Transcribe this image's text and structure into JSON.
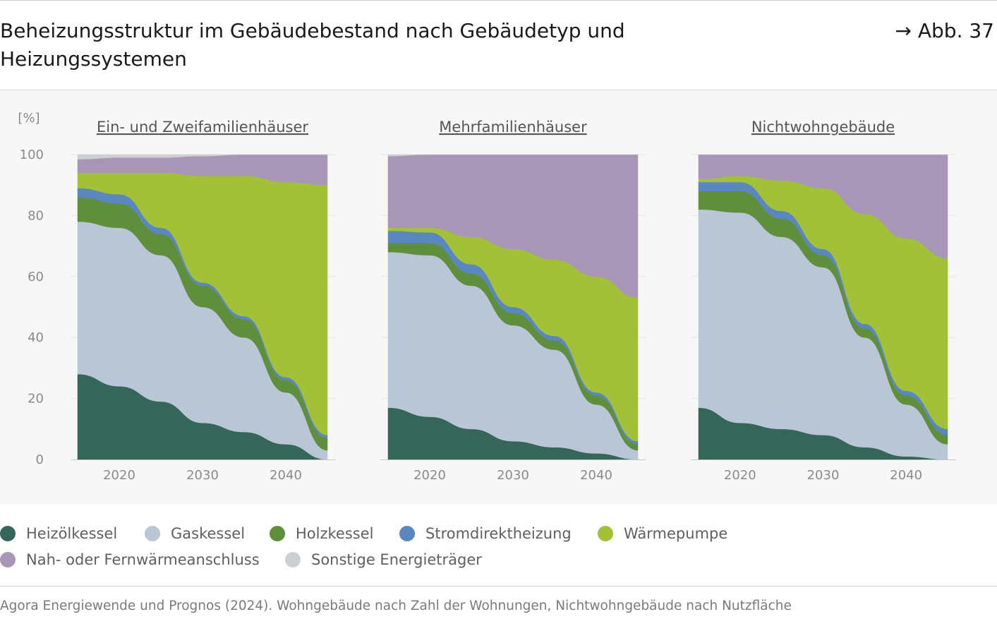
{
  "header": {
    "title": "Beheizungsstruktur im Gebäudebestand nach Gebäudetyp und Heizungssystemen",
    "figure_ref": "→ Abb. 37"
  },
  "chart_data": {
    "type": "area",
    "stacked": true,
    "unit_label": "[%]",
    "ylim": [
      0,
      100
    ],
    "yticks": [
      0,
      20,
      40,
      60,
      80,
      100
    ],
    "xlim": [
      2015,
      2045
    ],
    "xticks": [
      2020,
      2030,
      2040
    ],
    "x": [
      2015,
      2020,
      2025,
      2030,
      2035,
      2040,
      2045
    ],
    "series_order": [
      "Heizölkessel",
      "Gaskessel",
      "Holzkessel",
      "Stromdirektheizung",
      "Wärmepumpe",
      "Nah- oder Fernwärmeanschluss",
      "Sonstige Energieträger"
    ],
    "colors": {
      "Heizölkessel": "#36665a",
      "Gaskessel": "#b9c6d5",
      "Holzkessel": "#5f8f3c",
      "Stromdirektheizung": "#5b87bf",
      "Wärmepumpe": "#a2c138",
      "Nah- oder Fernwärmeanschluss": "#a896b6",
      "Sonstige Energieträger": "#cdd0d3"
    },
    "panels": [
      {
        "title": "Ein- und Zweifamilienhäuser",
        "series": [
          {
            "name": "Heizölkessel",
            "values": [
              28,
              24,
              19,
              12,
              9,
              5,
              0
            ]
          },
          {
            "name": "Gaskessel",
            "values": [
              50,
              52,
              48,
              38,
              31,
              17,
              3
            ]
          },
          {
            "name": "Holzkessel",
            "values": [
              8,
              8,
              7,
              7,
              6,
              4,
              4
            ]
          },
          {
            "name": "Stromdirektheizung",
            "values": [
              3,
              3,
              2,
              1,
              1,
              1,
              1
            ]
          },
          {
            "name": "Wärmepumpe",
            "values": [
              5,
              7,
              18,
              35,
              46,
              64,
              82
            ]
          },
          {
            "name": "Nah- oder Fernwärmeanschluss",
            "values": [
              4.5,
              5,
              5,
              6.5,
              7,
              9,
              10
            ]
          },
          {
            "name": "Sonstige Energieträger",
            "values": [
              1.5,
              1,
              1,
              0.5,
              0,
              0,
              0
            ]
          }
        ]
      },
      {
        "title": "Mehrfamilienhäuser",
        "series": [
          {
            "name": "Heizölkessel",
            "values": [
              17,
              14,
              10,
              6,
              4,
              2,
              0
            ]
          },
          {
            "name": "Gaskessel",
            "values": [
              51,
              53,
              47,
              38,
              32,
              16,
              3
            ]
          },
          {
            "name": "Holzkessel",
            "values": [
              3,
              4,
              4,
              4,
              3,
              3,
              2
            ]
          },
          {
            "name": "Stromdirektheizung",
            "values": [
              4,
              3.5,
              3,
              2,
              1.5,
              1,
              1
            ]
          },
          {
            "name": "Wärmepumpe",
            "values": [
              1,
              1.5,
              9,
              19,
              25,
              38,
              47
            ]
          },
          {
            "name": "Nah- oder Fernwärmeanschluss",
            "values": [
              23.5,
              24,
              27,
              31,
              34.5,
              40,
              47
            ]
          },
          {
            "name": "Sonstige Energieträger",
            "values": [
              0.5,
              0,
              0,
              0,
              0,
              0,
              0
            ]
          }
        ]
      },
      {
        "title": "Nichtwohngebäude",
        "series": [
          {
            "name": "Heizölkessel",
            "values": [
              17,
              12,
              10,
              8,
              4,
              1,
              0
            ]
          },
          {
            "name": "Gaskessel",
            "values": [
              65,
              69,
              63,
              55,
              36,
              17,
              5
            ]
          },
          {
            "name": "Holzkessel",
            "values": [
              6,
              7,
              6,
              4,
              3,
              3,
              3
            ]
          },
          {
            "name": "Stromdirektheizung",
            "values": [
              3,
              3,
              2.5,
              2,
              1.5,
              1.5,
              2
            ]
          },
          {
            "name": "Wärmepumpe",
            "values": [
              1,
              2,
              10,
              20,
              36,
              50,
              56
            ]
          },
          {
            "name": "Nah- oder Fernwärmeanschluss",
            "values": [
              8,
              7,
              8.5,
              11,
              19.5,
              27.5,
              34
            ]
          },
          {
            "name": "Sonstige Energieträger",
            "values": [
              0,
              0,
              0,
              0,
              0,
              0,
              0
            ]
          }
        ]
      }
    ]
  },
  "legend": {
    "items": [
      {
        "label": "Heizölkessel",
        "color": "#36665a"
      },
      {
        "label": "Gaskessel",
        "color": "#b9c6d5"
      },
      {
        "label": "Holzkessel",
        "color": "#5f8f3c"
      },
      {
        "label": "Stromdirektheizung",
        "color": "#5b87bf"
      },
      {
        "label": "Wärmepumpe",
        "color": "#a2c138"
      },
      {
        "label": "Nah- oder Fernwärmeanschluss",
        "color": "#a896b6"
      },
      {
        "label": "Sonstige Energieträger",
        "color": "#cdd0d3"
      }
    ]
  },
  "source": "Agora Energiewende und Prognos (2024). Wohngebäude nach Zahl der Wohnungen, Nichtwohngebäude nach Nutzfläche"
}
